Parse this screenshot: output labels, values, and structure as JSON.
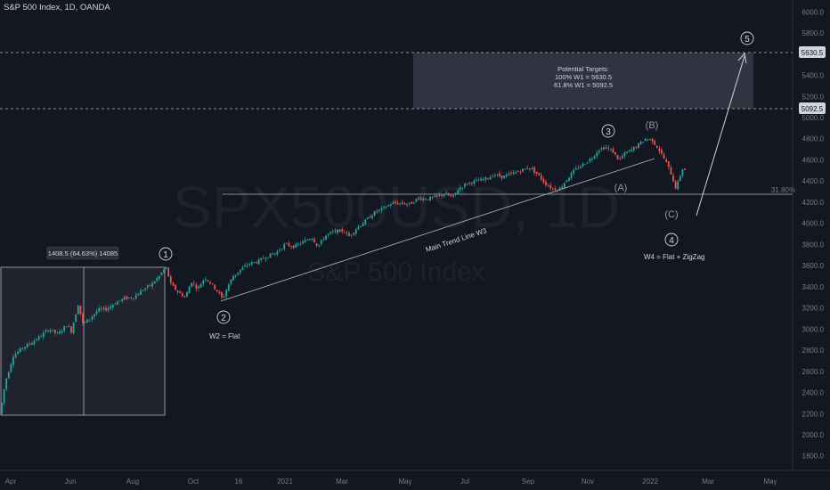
{
  "header": {
    "title": "S&P 500 Index, 1D, OANDA"
  },
  "watermark": {
    "symbol": "SPX500USD, 1D",
    "name": "S&P 500 Index"
  },
  "colors": {
    "background": "#131722",
    "up": "#26a69a",
    "down": "#ef5350",
    "text": "#d1d4dc",
    "muted": "#787b86",
    "box": "#2a2e39"
  },
  "measure": {
    "label": "1408.5 (64.63%) 14085"
  },
  "annotations": {
    "targets_title": "Potential Targets:",
    "target_100": "100% W1 = 5630.5",
    "target_618": "61.8% W1 = 5092.5",
    "trend_line": "Main Trend Line W3",
    "w2_note": "W2 = Flat",
    "w4_note": "W4 = Flat + ZigZag",
    "fib_label": "31.80%"
  },
  "waves": {
    "w1": "1",
    "w2": "2",
    "w3": "3",
    "w4": "4",
    "w5": "5",
    "a": "(A)",
    "b": "(B)",
    "c": "(C)"
  },
  "chart_data": {
    "type": "candlestick",
    "title": "S&P 500 Index, 1D, OANDA",
    "x_axis_labels": [
      "Apr",
      "Jun",
      "Aug",
      "Oct",
      "16",
      "2021",
      "Mar",
      "May",
      "Jul",
      "Sep",
      "Nov",
      "2022",
      "Mar",
      "May"
    ],
    "y_axis_ticks": [
      1800,
      2000,
      2200,
      2400,
      2600,
      2800,
      3000,
      3200,
      3400,
      3600,
      3800,
      4000,
      4200,
      4400,
      4600,
      4800,
      5000,
      5200,
      5400,
      5600,
      5800,
      6000
    ],
    "ylim": [
      1640,
      6130
    ],
    "price_path": [
      [
        0,
        2200
      ],
      [
        6,
        2500
      ],
      [
        15,
        2750
      ],
      [
        25,
        2820
      ],
      [
        35,
        2870
      ],
      [
        45,
        2930
      ],
      [
        55,
        3000
      ],
      [
        65,
        2950
      ],
      [
        75,
        3040
      ],
      [
        80,
        2980
      ],
      [
        88,
        3240
      ],
      [
        93,
        3050
      ],
      [
        100,
        3090
      ],
      [
        110,
        3180
      ],
      [
        120,
        3190
      ],
      [
        130,
        3250
      ],
      [
        140,
        3290
      ],
      [
        150,
        3300
      ],
      [
        160,
        3370
      ],
      [
        170,
        3420
      ],
      [
        180,
        3510
      ],
      [
        186,
        3590
      ],
      [
        192,
        3420
      ],
      [
        200,
        3350
      ],
      [
        208,
        3300
      ],
      [
        215,
        3450
      ],
      [
        222,
        3380
      ],
      [
        230,
        3490
      ],
      [
        238,
        3420
      ],
      [
        245,
        3350
      ],
      [
        250,
        3280
      ],
      [
        256,
        3410
      ],
      [
        262,
        3500
      ],
      [
        270,
        3560
      ],
      [
        280,
        3620
      ],
      [
        290,
        3640
      ],
      [
        300,
        3690
      ],
      [
        310,
        3720
      ],
      [
        320,
        3800
      ],
      [
        330,
        3780
      ],
      [
        340,
        3820
      ],
      [
        350,
        3870
      ],
      [
        357,
        3780
      ],
      [
        365,
        3880
      ],
      [
        375,
        3920
      ],
      [
        385,
        3930
      ],
      [
        392,
        3880
      ],
      [
        400,
        3950
      ],
      [
        410,
        4020
      ],
      [
        420,
        4100
      ],
      [
        430,
        4140
      ],
      [
        440,
        4190
      ],
      [
        450,
        4190
      ],
      [
        460,
        4180
      ],
      [
        470,
        4240
      ],
      [
        480,
        4230
      ],
      [
        490,
        4250
      ],
      [
        500,
        4280
      ],
      [
        508,
        4240
      ],
      [
        515,
        4330
      ],
      [
        525,
        4380
      ],
      [
        535,
        4400
      ],
      [
        545,
        4420
      ],
      [
        555,
        4460
      ],
      [
        565,
        4440
      ],
      [
        575,
        4470
      ],
      [
        585,
        4500
      ],
      [
        595,
        4530
      ],
      [
        605,
        4450
      ],
      [
        612,
        4380
      ],
      [
        620,
        4330
      ],
      [
        628,
        4320
      ],
      [
        635,
        4400
      ],
      [
        645,
        4500
      ],
      [
        655,
        4560
      ],
      [
        665,
        4620
      ],
      [
        672,
        4700
      ],
      [
        680,
        4720
      ],
      [
        688,
        4680
      ],
      [
        695,
        4600
      ],
      [
        702,
        4660
      ],
      [
        710,
        4700
      ],
      [
        718,
        4750
      ],
      [
        725,
        4800
      ],
      [
        732,
        4790
      ],
      [
        738,
        4720
      ],
      [
        744,
        4640
      ],
      [
        750,
        4540
      ],
      [
        755,
        4440
      ],
      [
        758,
        4330
      ],
      [
        762,
        4400
      ],
      [
        766,
        4520
      ],
      [
        770,
        4500
      ]
    ],
    "levels": {
      "target_100": 5630.5,
      "target_61_8": 5092.5,
      "fib_31_8": 4245
    },
    "measure": {
      "change": 1408.5,
      "percent": 64.63,
      "ticks": 14085
    }
  }
}
